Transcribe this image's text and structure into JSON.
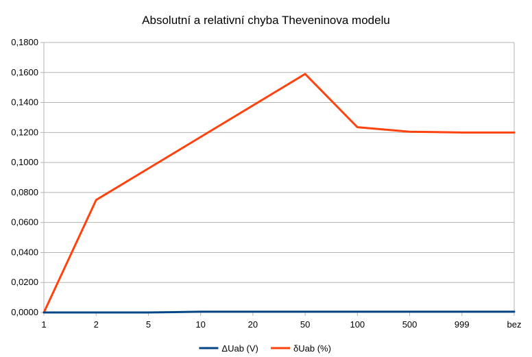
{
  "chart_data": {
    "type": "line",
    "title": "Absolutní a relativní chyba Theveninova modelu",
    "categories": [
      "1",
      "2",
      "5",
      "10",
      "20",
      "50",
      "100",
      "500",
      "999",
      "bez"
    ],
    "y_tick_labels": [
      "0,0000",
      "0,0200",
      "0,0400",
      "0,0600",
      "0,0800",
      "0,1000",
      "0,1200",
      "0,1400",
      "0,1600",
      "0,1800"
    ],
    "ylim": [
      0,
      0.18
    ],
    "ytick_step": 0.02,
    "grid": true,
    "legend_position": "bottom",
    "series": [
      {
        "name": "ΔUab (V)",
        "color": "#004586",
        "values": [
          0.0,
          0.0,
          0.0,
          0.0005,
          0.0005,
          0.0005,
          0.0005,
          0.0005,
          0.0005,
          0.0005
        ]
      },
      {
        "name": "δUab (%)",
        "color": "#ff420e",
        "values": [
          0.0,
          0.075,
          0.096,
          0.117,
          0.138,
          0.159,
          0.1235,
          0.1205,
          0.12,
          0.12
        ]
      }
    ]
  }
}
